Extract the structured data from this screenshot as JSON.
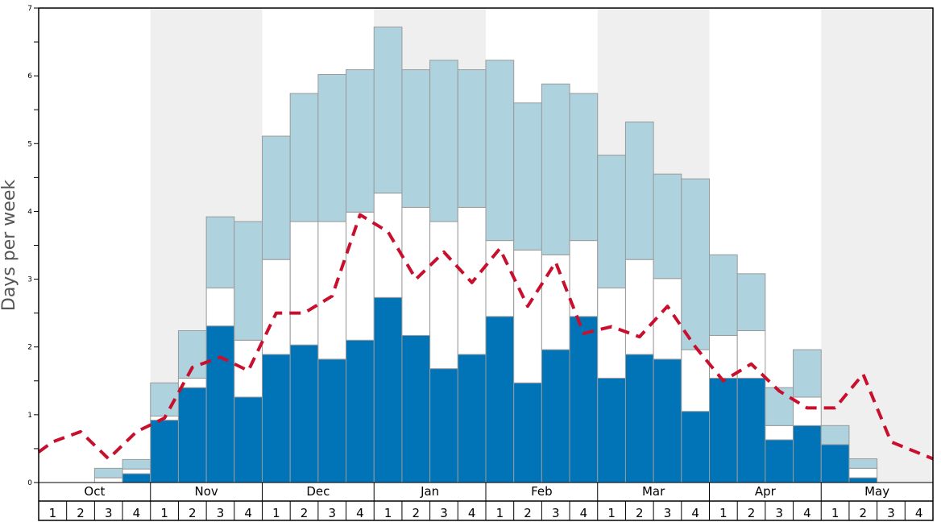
{
  "chart_data": {
    "type": "bar",
    "ylabel": "Days per week",
    "ylim": [
      0,
      7
    ],
    "yticks": [
      "0",
      "1",
      "2",
      "3",
      "4",
      "5",
      "6",
      "7"
    ],
    "months": [
      "Oct",
      "Nov",
      "Dec",
      "Jan",
      "Feb",
      "Mar",
      "Apr",
      "May"
    ],
    "weeks_per_month": [
      "1",
      "2",
      "3",
      "4"
    ],
    "shaded_months": [
      "Nov",
      "Jan",
      "Mar",
      "May"
    ],
    "colors": {
      "dark": "#0074b7",
      "white": "#ffffff",
      "light": "#aed3df",
      "shade": "#efefef",
      "line": "#c8102e",
      "bar_edge": "#9a9a9a"
    },
    "series": [
      {
        "values": [
          0,
          0,
          0,
          0.13,
          0.92,
          1.4,
          2.31,
          1.26,
          1.89,
          2.03,
          1.82,
          2.1,
          2.73,
          2.17,
          1.68,
          1.89,
          2.45,
          1.47,
          1.96,
          2.45,
          1.54,
          1.89,
          1.82,
          1.05,
          1.54,
          1.54,
          0.63,
          0.84,
          0.56,
          0.07,
          0,
          0
        ]
      },
      {
        "values": [
          0,
          0,
          0.07,
          0.07,
          0.06,
          0.14,
          0.56,
          0.84,
          1.4,
          1.82,
          2.03,
          1.89,
          1.54,
          1.89,
          2.17,
          2.17,
          1.12,
          1.96,
          1.4,
          1.12,
          1.33,
          1.4,
          1.19,
          0.91,
          0.63,
          0.7,
          0.21,
          0.42,
          0,
          0.14,
          0,
          0
        ]
      },
      {
        "values": [
          0,
          0,
          0.14,
          0.14,
          0.49,
          0.7,
          1.05,
          1.75,
          1.82,
          1.89,
          2.17,
          2.1,
          2.45,
          2.03,
          2.38,
          2.03,
          2.66,
          2.17,
          2.52,
          2.17,
          1.96,
          2.03,
          1.54,
          2.52,
          1.19,
          0.84,
          0.56,
          0.7,
          0.28,
          0.14,
          0,
          0
        ]
      },
      {
        "type": "line",
        "style": "dashed",
        "values": [
          0.45,
          0.6,
          0.75,
          0.35,
          0.75,
          0.95,
          1.7,
          1.85,
          1.65,
          2.5,
          2.5,
          2.75,
          3.95,
          3.7,
          3.0,
          3.4,
          2.95,
          3.45,
          2.6,
          3.25,
          2.2,
          2.3,
          2.15,
          2.6,
          2.0,
          1.5,
          1.75,
          1.35,
          1.1,
          1.1,
          1.6,
          0.6,
          0.35
        ]
      }
    ]
  }
}
